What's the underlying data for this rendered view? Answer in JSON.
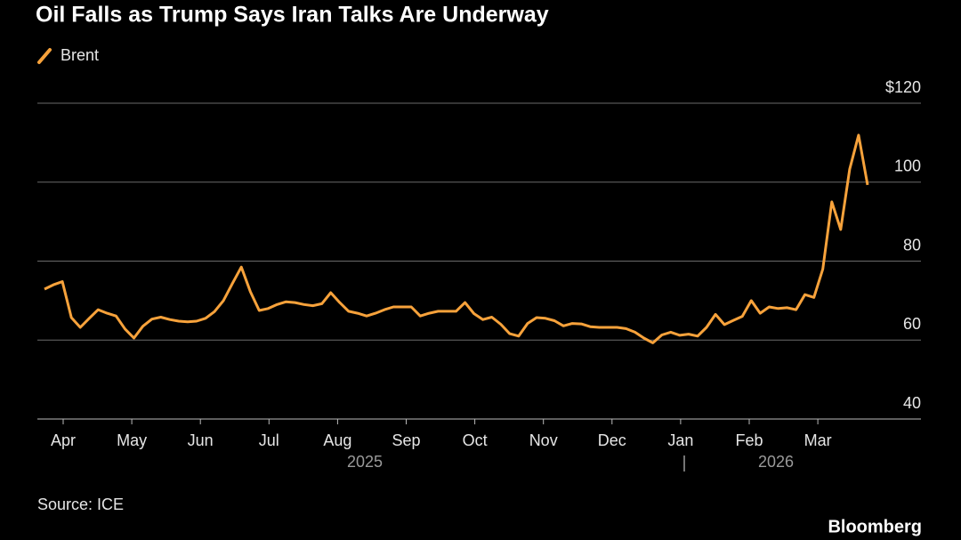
{
  "chart_data": {
    "type": "line",
    "title": "Oil Falls as Trump Says Iran Talks Are Underway",
    "series": [
      {
        "name": "Brent",
        "color": "#f7a23b",
        "values": [
          72.9,
          74,
          74.8,
          65.7,
          63.2,
          65.5,
          67.7,
          66.8,
          66.1,
          62.8,
          60.5,
          63.5,
          65.3,
          65.8,
          65.2,
          64.8,
          64.6,
          64.8,
          65.5,
          67.2,
          70,
          74.3,
          78.5,
          72.3,
          67.5,
          68,
          69,
          69.7,
          69.5,
          69,
          68.7,
          69.2,
          72,
          69.5,
          67.3,
          66.8,
          66.1,
          66.8,
          67.7,
          68.4,
          68.4,
          68.4,
          66.1,
          66.8,
          67.3,
          67.3,
          67.3,
          69.5,
          66.7,
          65.2,
          65.8,
          64,
          61.6,
          61,
          64.2,
          65.7,
          65.5,
          64.9,
          63.6,
          64.2,
          64.1,
          63.4,
          63.2,
          63.2,
          63.2,
          62.9,
          62,
          60.5,
          59.3,
          61.3,
          62,
          61.2,
          61.5,
          61,
          63.2,
          66.5,
          63.9,
          65,
          66,
          70,
          66.8,
          68.4,
          68,
          68.2,
          67.7,
          71.5,
          70.8,
          78,
          95,
          88,
          103.3,
          111.9,
          99.3
        ]
      }
    ],
    "ylim": [
      40,
      120
    ],
    "yticks": [
      40,
      60,
      80,
      100,
      {
        "value": 120,
        "label": "$120"
      }
    ],
    "xticks": [
      "Apr",
      "May",
      "Jun",
      "Jul",
      "Aug",
      "Sep",
      "Oct",
      "Nov",
      "Dec",
      "Jan",
      "Feb",
      "Mar"
    ],
    "year_labels": [
      "2025",
      "2026"
    ],
    "grid": true,
    "source": "Source: ICE",
    "brand": "Bloomberg"
  }
}
